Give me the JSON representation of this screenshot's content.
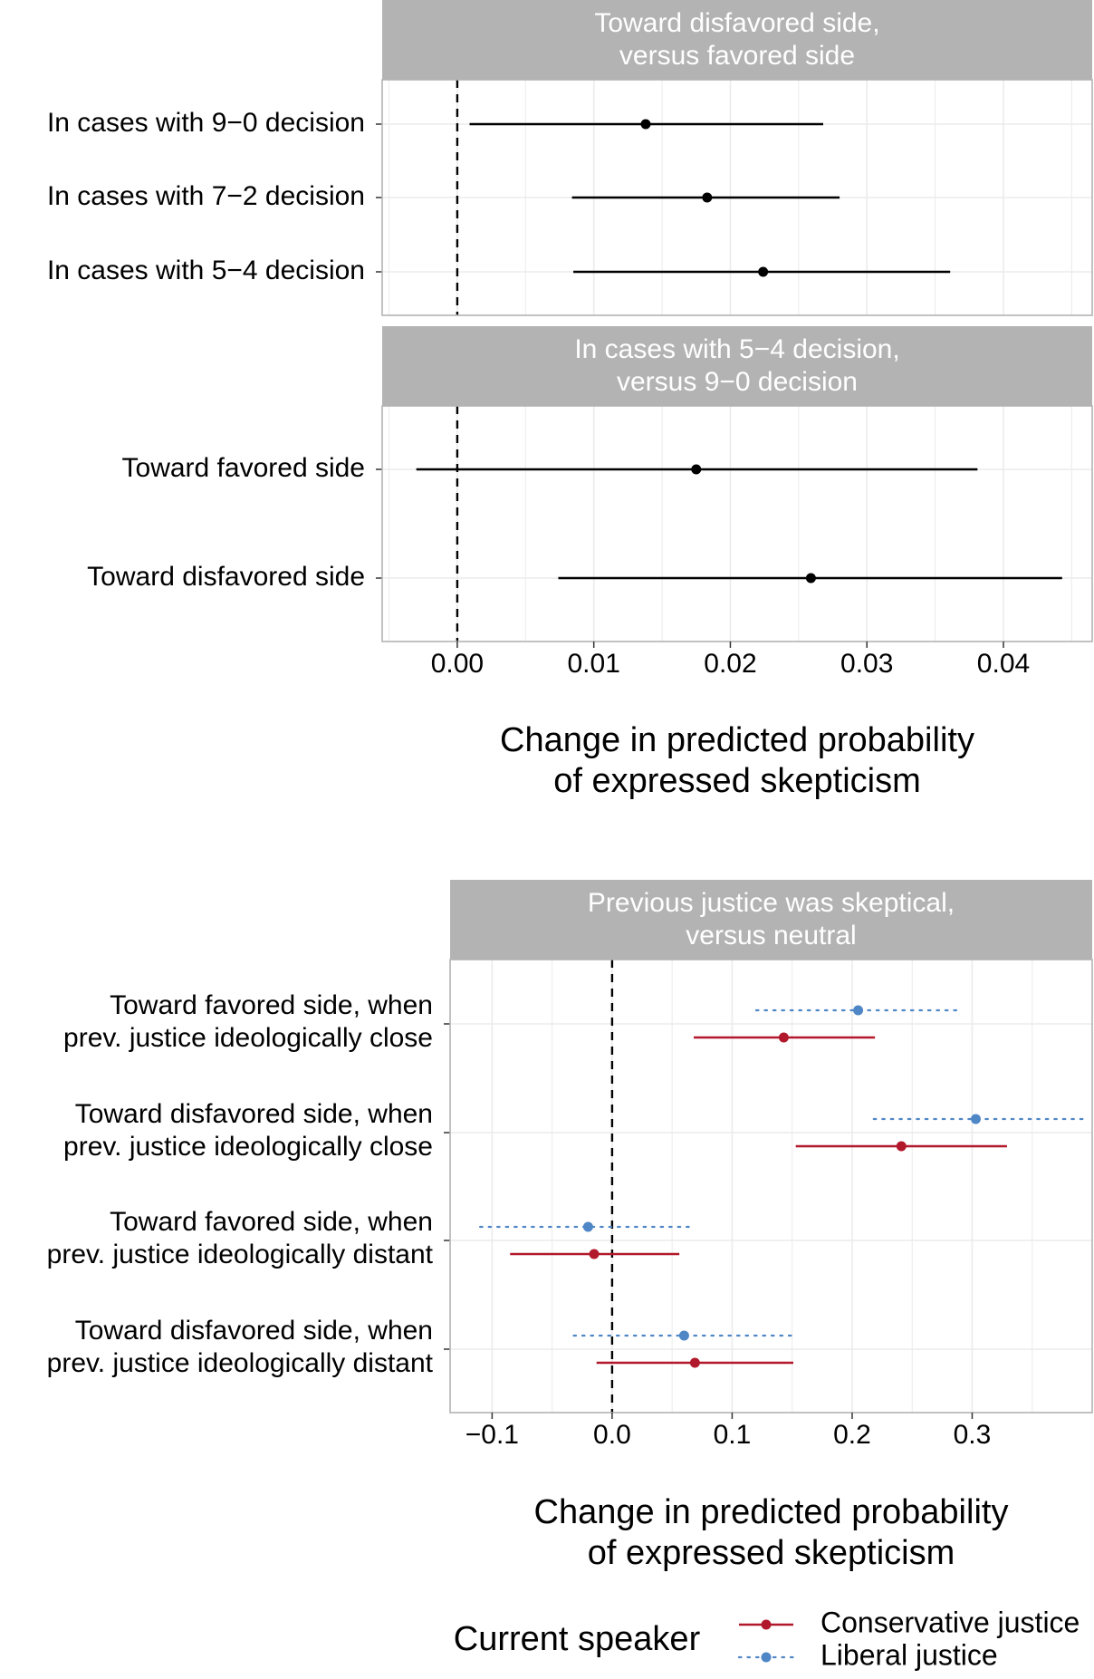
{
  "chart_data": [
    {
      "type": "forest",
      "panels": [
        {
          "strip_label": [
            "Toward disfavored side,",
            "versus favored side"
          ],
          "xlim": [
            -0.0055,
            0.0465
          ],
          "rows": [
            {
              "label": [
                "In cases with 9−0 decision"
              ],
              "estimate": 0.0138,
              "lower": 0.0009,
              "upper": 0.0268
            },
            {
              "label": [
                "In cases with 7−2 decision"
              ],
              "estimate": 0.0183,
              "lower": 0.0084,
              "upper": 0.028
            },
            {
              "label": [
                "In cases with 5−4 decision"
              ],
              "estimate": 0.0224,
              "lower": 0.0085,
              "upper": 0.0361
            }
          ]
        },
        {
          "strip_label": [
            "In cases with 5−4 decision,",
            "versus 9−0 decision"
          ],
          "xlim": [
            -0.0055,
            0.0465
          ],
          "rows": [
            {
              "label": [
                "Toward favored side"
              ],
              "estimate": 0.0175,
              "lower": -0.003,
              "upper": 0.0381
            },
            {
              "label": [
                "Toward disfavored side"
              ],
              "estimate": 0.0259,
              "lower": 0.0074,
              "upper": 0.0443
            }
          ]
        }
      ],
      "reference_line": 0,
      "x_ticks": [
        0.0,
        0.01,
        0.02,
        0.03,
        0.04
      ],
      "x_tick_labels": [
        "0.00",
        "0.01",
        "0.02",
        "0.03",
        "0.04"
      ],
      "xlabel": [
        "Change in predicted probability",
        "of expressed skepticism"
      ]
    },
    {
      "type": "forest",
      "panel": {
        "strip_label": [
          "Previous justice was skeptical,",
          "versus neutral"
        ],
        "xlim": [
          -0.135,
          0.4
        ]
      },
      "rows": [
        {
          "label": [
            "Toward favored side, when",
            "prev. justice ideologically close"
          ],
          "liberal": {
            "estimate": 0.205,
            "lower": 0.12,
            "upper": 0.292
          },
          "conservative": {
            "estimate": 0.143,
            "lower": 0.068,
            "upper": 0.219
          }
        },
        {
          "label": [
            "Toward disfavored side, when",
            "prev. justice ideologically close"
          ],
          "liberal": {
            "estimate": 0.303,
            "lower": 0.218,
            "upper": 0.392
          },
          "conservative": {
            "estimate": 0.241,
            "lower": 0.153,
            "upper": 0.329
          }
        },
        {
          "label": [
            "Toward favored side, when",
            "prev. justice ideologically distant"
          ],
          "liberal": {
            "estimate": -0.02,
            "lower": -0.11,
            "upper": 0.069
          },
          "conservative": {
            "estimate": -0.015,
            "lower": -0.085,
            "upper": 0.056
          }
        },
        {
          "label": [
            "Toward disfavored side, when",
            "prev. justice ideologically distant"
          ],
          "liberal": {
            "estimate": 0.06,
            "lower": -0.032,
            "upper": 0.154
          },
          "conservative": {
            "estimate": 0.069,
            "lower": -0.013,
            "upper": 0.151
          }
        }
      ],
      "reference_line": 0,
      "x_ticks": [
        -0.1,
        0.0,
        0.1,
        0.2,
        0.3
      ],
      "x_tick_labels": [
        "−0.1",
        "0.0",
        "0.1",
        "0.2",
        "0.3"
      ],
      "xlabel": [
        "Change in predicted probability",
        "of expressed skepticism"
      ],
      "legend": {
        "title": "Current speaker",
        "position": "bottom",
        "entries": [
          {
            "key": "conservative",
            "label": "Conservative justice",
            "color": "#b2182b",
            "line": "solid"
          },
          {
            "key": "liberal",
            "label": "Liberal justice",
            "color": "#4f86c6",
            "line": "dotted"
          }
        ]
      }
    }
  ],
  "colors": {
    "strip": "#b3b3b3",
    "strip_text": "#ffffff",
    "grid": "#ebebeb",
    "panel_border": "#b3b3b3",
    "point": "#000000"
  }
}
